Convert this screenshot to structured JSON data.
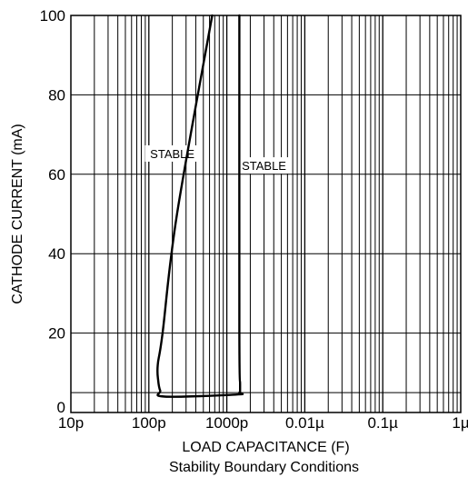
{
  "chart_data": {
    "type": "line",
    "subtitle": "Stability Boundary Conditions",
    "xlabel": "LOAD CAPACITANCE (F)",
    "ylabel": "CATHODE CURRENT (mA)",
    "x_scale": "log",
    "xlim": [
      1e-11,
      1e-06
    ],
    "ylim": [
      0,
      100
    ],
    "grid": true,
    "x_ticks": [
      {
        "value": 1e-11,
        "label": "10p"
      },
      {
        "value": 1e-10,
        "label": "100p"
      },
      {
        "value": 1e-09,
        "label": "1000p"
      },
      {
        "value": 1e-08,
        "label": "0.01µ"
      },
      {
        "value": 1e-07,
        "label": "0.1µ"
      },
      {
        "value": 1e-06,
        "label": "1µ"
      }
    ],
    "y_ticks": [
      {
        "value": 0,
        "label": "0"
      },
      {
        "value": 20,
        "label": "20"
      },
      {
        "value": 40,
        "label": "40"
      },
      {
        "value": 60,
        "label": "60"
      },
      {
        "value": 80,
        "label": "80"
      },
      {
        "value": 100,
        "label": "100"
      }
    ],
    "y_grid_values": [
      0,
      5,
      20,
      40,
      60,
      80,
      100
    ],
    "annotations": [
      {
        "text": "STABLE",
        "x": 2e-10,
        "y": 65
      },
      {
        "text": "STABLE",
        "x": 3e-09,
        "y": 62
      }
    ],
    "series": [
      {
        "x": [
          6.5e-10,
          2.3e-10,
          1.5e-10,
          1.3e-10,
          1.32e-10,
          1.4e-10,
          1.6e-10,
          1.3e-09,
          1.45e-09,
          1.48e-09,
          1.45e-09,
          1.45e-09
        ],
        "y": [
          100,
          50,
          20,
          12,
          8,
          5.5,
          4,
          4.5,
          5,
          7,
          20,
          100
        ]
      }
    ]
  }
}
